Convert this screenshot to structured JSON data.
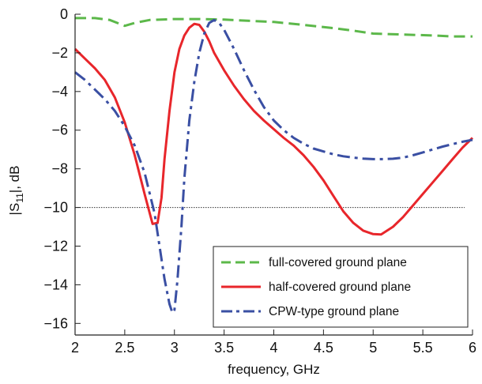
{
  "chart_data": {
    "type": "line",
    "title": "",
    "xlabel": "frequency, GHz",
    "ylabel_main": "|S",
    "ylabel_sub": "11",
    "ylabel_tail": "|, dB",
    "xlim": [
      2,
      6
    ],
    "ylim": [
      -16.6,
      0
    ],
    "xticks": [
      "2",
      "2.5",
      "3",
      "3.5",
      "4",
      "4.5",
      "5",
      "5.5",
      "6"
    ],
    "yticks": [
      "0",
      "−2",
      "−4",
      "−6",
      "−8",
      "−10",
      "−12",
      "−14",
      "−16"
    ],
    "xtick_values": [
      2,
      2.5,
      3,
      3.5,
      4,
      4.5,
      5,
      5.5,
      6
    ],
    "ytick_values": [
      0,
      -2,
      -4,
      -6,
      -8,
      -10,
      -12,
      -14,
      -16
    ],
    "reference_line": {
      "y": -10,
      "style": "dotted",
      "color": "#333333"
    },
    "grid": false,
    "legend_position": "bottom-right",
    "series": [
      {
        "name": "full-covered ground plane",
        "color": "#5cb84a",
        "dash": "dashed",
        "x": [
          2,
          2.2,
          2.35,
          2.5,
          2.6,
          2.75,
          3,
          3.25,
          3.5,
          3.8,
          4,
          4.3,
          4.6,
          4.8,
          5,
          5.3,
          5.6,
          5.8,
          6
        ],
        "y": [
          -0.2,
          -0.2,
          -0.3,
          -0.6,
          -0.45,
          -0.3,
          -0.25,
          -0.25,
          -0.28,
          -0.35,
          -0.4,
          -0.55,
          -0.72,
          -0.85,
          -1.0,
          -1.05,
          -1.1,
          -1.15,
          -1.15
        ]
      },
      {
        "name": "half-covered ground plane",
        "color": "#e8262b",
        "dash": "solid",
        "x": [
          2,
          2.1,
          2.2,
          2.3,
          2.4,
          2.5,
          2.6,
          2.7,
          2.78,
          2.83,
          2.87,
          2.9,
          2.95,
          3.0,
          3.05,
          3.1,
          3.15,
          3.2,
          3.25,
          3.3,
          3.35,
          3.4,
          3.5,
          3.6,
          3.7,
          3.8,
          3.9,
          4.0,
          4.1,
          4.2,
          4.3,
          4.4,
          4.5,
          4.6,
          4.7,
          4.8,
          4.9,
          5.0,
          5.08,
          5.2,
          5.3,
          5.4,
          5.5,
          5.6,
          5.7,
          5.8,
          5.9,
          6.0
        ],
        "y": [
          -1.8,
          -2.3,
          -2.8,
          -3.4,
          -4.3,
          -5.6,
          -7.3,
          -9.3,
          -10.85,
          -10.8,
          -9.5,
          -7.5,
          -5.0,
          -3.0,
          -1.8,
          -1.1,
          -0.7,
          -0.5,
          -0.55,
          -0.9,
          -1.4,
          -2.0,
          -2.9,
          -3.7,
          -4.4,
          -5.0,
          -5.5,
          -5.95,
          -6.4,
          -6.8,
          -7.3,
          -7.9,
          -8.6,
          -9.4,
          -10.2,
          -10.8,
          -11.2,
          -11.38,
          -11.4,
          -11.0,
          -10.5,
          -9.9,
          -9.3,
          -8.7,
          -8.1,
          -7.5,
          -6.9,
          -6.4
        ]
      },
      {
        "name": "CPW-type ground plane",
        "color": "#3a4fa3",
        "dash": "dashdot",
        "x": [
          2,
          2.1,
          2.2,
          2.3,
          2.4,
          2.5,
          2.6,
          2.7,
          2.8,
          2.85,
          2.9,
          2.95,
          2.98,
          3.0,
          3.03,
          3.07,
          3.1,
          3.15,
          3.2,
          3.25,
          3.3,
          3.35,
          3.4,
          3.45,
          3.5,
          3.6,
          3.7,
          3.8,
          3.9,
          4.0,
          4.1,
          4.2,
          4.3,
          4.4,
          4.5,
          4.6,
          4.7,
          4.8,
          4.9,
          5.0,
          5.1,
          5.2,
          5.3,
          5.4,
          5.5,
          5.6,
          5.7,
          5.8,
          5.9,
          6.0
        ],
        "y": [
          -3.0,
          -3.4,
          -3.9,
          -4.4,
          -5.0,
          -5.8,
          -6.8,
          -8.2,
          -10.3,
          -12.0,
          -13.7,
          -15.0,
          -15.45,
          -15.3,
          -13.8,
          -11.0,
          -8.5,
          -5.5,
          -3.5,
          -2.0,
          -1.0,
          -0.45,
          -0.3,
          -0.45,
          -0.8,
          -1.8,
          -2.9,
          -3.9,
          -4.8,
          -5.5,
          -6.0,
          -6.4,
          -6.7,
          -6.95,
          -7.1,
          -7.25,
          -7.35,
          -7.42,
          -7.47,
          -7.5,
          -7.5,
          -7.48,
          -7.42,
          -7.3,
          -7.15,
          -7.0,
          -6.85,
          -6.72,
          -6.6,
          -6.5
        ]
      }
    ]
  }
}
